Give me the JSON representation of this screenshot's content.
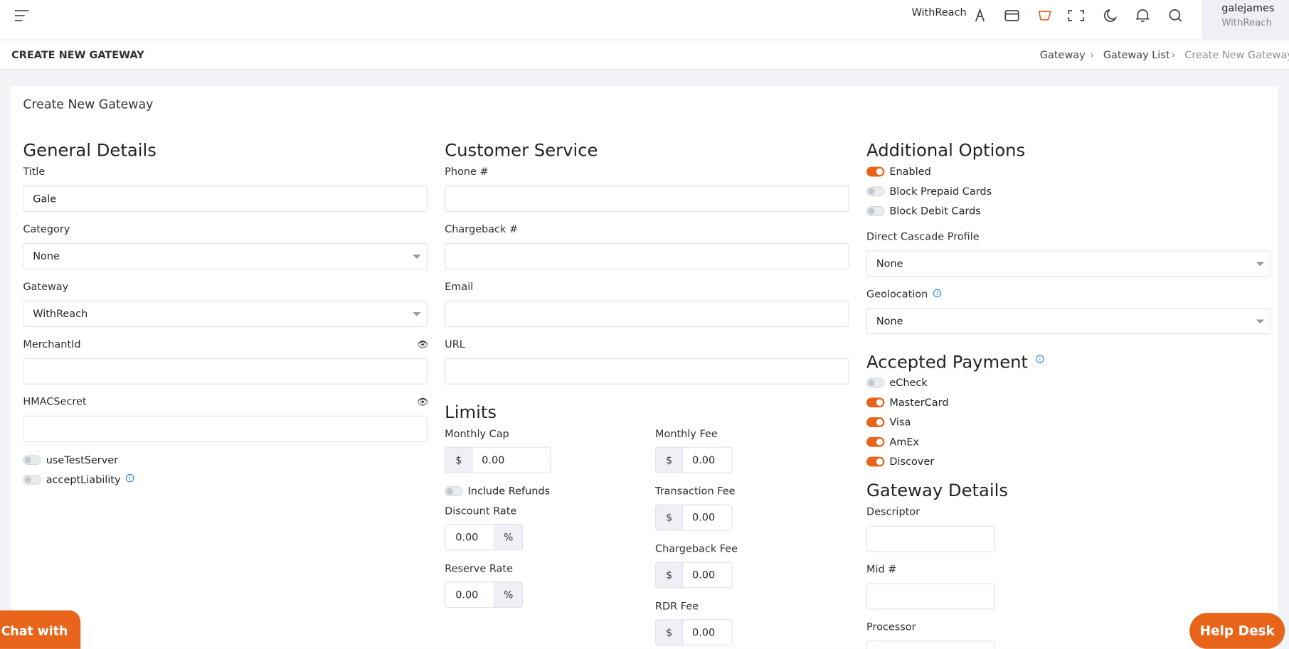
{
  "topbar": {
    "brand": "WithReach",
    "user_name": "galejames",
    "user_org": "WithReach"
  },
  "page_header": {
    "title": "CREATE NEW GATEWAY",
    "breadcrumbs": [
      "Gateway",
      "Gateway List",
      "Create New Gateway"
    ]
  },
  "card": {
    "title": "Create New Gateway"
  },
  "general_details": {
    "heading": "General Details",
    "fields": [
      {
        "label": "Title",
        "type": "text",
        "value": "Gale"
      },
      {
        "label": "Category",
        "type": "select",
        "value": "None"
      },
      {
        "label": "Gateway",
        "type": "select",
        "value": "WithReach"
      },
      {
        "label": "MerchantId",
        "type": "secret"
      },
      {
        "label": "HMACSecret",
        "type": "secret"
      }
    ],
    "toggles": [
      {
        "label": "useTestServer",
        "on": false
      },
      {
        "label": "acceptLiability",
        "on": false,
        "info": true
      }
    ]
  },
  "customer_service": {
    "heading": "Customer Service",
    "fields": [
      {
        "label": "Phone #",
        "type": "text"
      },
      {
        "label": "Chargeback #",
        "type": "text"
      },
      {
        "label": "Email",
        "type": "text"
      },
      {
        "label": "URL",
        "type": "text"
      }
    ]
  },
  "limits": {
    "heading": "Limits",
    "left": [
      {
        "label": "Monthly Cap",
        "prefix": "$",
        "value": "0.00"
      },
      {
        "toggle": "Include Refunds",
        "on": false
      },
      {
        "label": "Discount Rate",
        "suffix": "%",
        "value": "0.00"
      },
      {
        "label": "Reserve Rate",
        "suffix": "%",
        "value": "0.00"
      }
    ],
    "right": [
      {
        "label": "Monthly Fee",
        "prefix": "$",
        "value": "0.00"
      },
      {
        "label": "Transaction Fee",
        "prefix": "$",
        "value": "0.00"
      },
      {
        "label": "Chargeback Fee",
        "prefix": "$",
        "value": "0.00"
      },
      {
        "label": "RDR Fee",
        "prefix": "$",
        "value": "0.00"
      }
    ]
  },
  "additional_options": {
    "heading": "Additional Options",
    "toggles": [
      {
        "label": "Enabled",
        "on": true
      },
      {
        "label": "Block Prepaid Cards",
        "on": false
      },
      {
        "label": "Block Debit Cards",
        "on": false
      }
    ],
    "fields": [
      {
        "label": "Direct Cascade Profile",
        "type": "select",
        "value": "None"
      },
      {
        "label": "Geolocation",
        "type": "select",
        "value": "None",
        "info": true
      }
    ]
  },
  "accepted_payment": {
    "heading": "Accepted Payment",
    "info": true,
    "toggles": [
      {
        "label": "eCheck",
        "on": false
      },
      {
        "label": "MasterCard",
        "on": true
      },
      {
        "label": "Visa",
        "on": true
      },
      {
        "label": "AmEx",
        "on": true
      },
      {
        "label": "Discover",
        "on": true
      }
    ]
  },
  "gateway_details": {
    "heading": "Gateway Details",
    "fields": [
      {
        "label": "Descriptor",
        "type": "text"
      },
      {
        "label": "Mid #",
        "type": "text"
      },
      {
        "label": "Processor",
        "type": "text"
      }
    ]
  },
  "widgets": {
    "chat": "Chat with us!",
    "help": "Help Desk"
  }
}
